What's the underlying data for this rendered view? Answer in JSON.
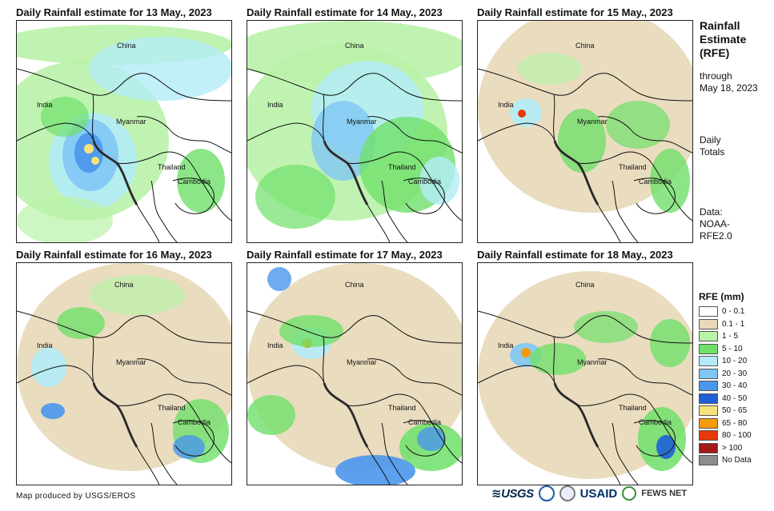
{
  "panels": [
    {
      "title": "Daily Rainfall estimate for 13 May., 2023",
      "labels": {
        "china": "China",
        "india": "India",
        "myanmar": "Myanmar",
        "thailand": "Thailand",
        "cambodia": "Cambodia"
      }
    },
    {
      "title": "Daily Rainfall estimate for 14 May., 2023",
      "labels": {
        "china": "China",
        "india": "India",
        "myanmar": "Myanmar",
        "thailand": "Thailand",
        "cambodia": "Cambodia"
      }
    },
    {
      "title": "Daily Rainfall estimate for 15 May., 2023",
      "labels": {
        "china": "China",
        "india": "India",
        "myanmar": "Myanmar",
        "thailand": "Thailand",
        "cambodia": "Cambodia"
      }
    },
    {
      "title": "Daily Rainfall estimate for 16 May., 2023",
      "labels": {
        "china": "China",
        "india": "India",
        "myanmar": "Myanmar",
        "thailand": "Thailand",
        "cambodia": "Cambodia"
      }
    },
    {
      "title": "Daily Rainfall estimate for 17 May., 2023",
      "labels": {
        "china": "China",
        "india": "India",
        "myanmar": "Myanmar",
        "thailand": "Thailand",
        "cambodia": "Cambodia"
      }
    },
    {
      "title": "Daily Rainfall estimate for 18 May., 2023",
      "labels": {
        "china": "China",
        "india": "India",
        "myanmar": "Myanmar",
        "thailand": "Thailand",
        "cambodia": "Cambodia"
      }
    }
  ],
  "sidebar": {
    "heading_lines": [
      "Rainfall",
      "Estimate",
      "(RFE)"
    ],
    "through_lines": [
      "through",
      "May 18, 2023"
    ],
    "totals_lines": [
      "Daily",
      "Totals"
    ],
    "data_lines": [
      "Data:",
      "NOAA-",
      "RFE2.0"
    ]
  },
  "legend": {
    "title": "RFE (mm)",
    "items": [
      {
        "label": "0 - 0.1",
        "color": "#ffffff"
      },
      {
        "label": "0.1 - 1",
        "color": "#e8d8b8"
      },
      {
        "label": "1 - 5",
        "color": "#b9f2a8"
      },
      {
        "label": "5 - 10",
        "color": "#6fe06a"
      },
      {
        "label": "10 - 20",
        "color": "#b3ecf7"
      },
      {
        "label": "20 - 30",
        "color": "#7fc7f5"
      },
      {
        "label": "30 - 40",
        "color": "#4a96ec"
      },
      {
        "label": "40 - 50",
        "color": "#1e5fd6"
      },
      {
        "label": "50 - 65",
        "color": "#f8e27a"
      },
      {
        "label": "65 - 80",
        "color": "#f59a0c"
      },
      {
        "label": "80 - 100",
        "color": "#e8380c"
      },
      {
        "label": "> 100",
        "color": "#a31818"
      },
      {
        "label": "No Data",
        "color": "#8c8c8c"
      }
    ]
  },
  "footer": {
    "credit": "Map produced by USGS/EROS",
    "logos": {
      "usgs": "≋USGS",
      "usaid": "USAID",
      "fews": "FEWS NET"
    }
  }
}
